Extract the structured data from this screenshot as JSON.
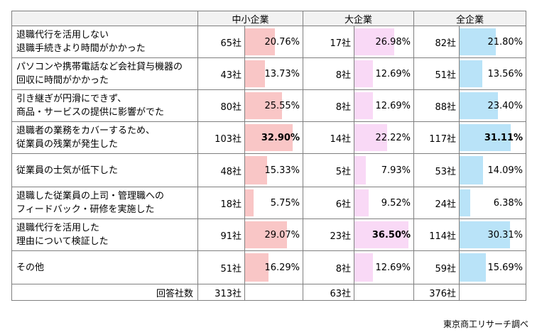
{
  "header": {
    "groups": [
      "中小企業",
      "大企業",
      "全企業"
    ]
  },
  "colors": {
    "sme_bar": "#f9c6c6",
    "large_bar": "#f9d9f6",
    "all_bar": "#b9e3f8"
  },
  "rows": [
    {
      "label1": "退職代行を活用しない",
      "label2": "退職手続きより時間がかかった",
      "sme": {
        "count": "65社",
        "pct": "20.76%",
        "value": 20.76
      },
      "large": {
        "count": "17社",
        "pct": "26.98%",
        "value": 26.98
      },
      "all": {
        "count": "82社",
        "pct": "21.80%",
        "value": 21.8
      }
    },
    {
      "label1": "パソコンや携帯電話など会社貸与機器の",
      "label2": "回収に時間がかかった",
      "sme": {
        "count": "43社",
        "pct": "13.73%",
        "value": 13.73
      },
      "large": {
        "count": "8社",
        "pct": "12.69%",
        "value": 12.69
      },
      "all": {
        "count": "51社",
        "pct": "13.56%",
        "value": 13.56
      }
    },
    {
      "label1": "引き継ぎが円滑にできず、",
      "label2": "商品・サービスの提供に影響がでた",
      "sme": {
        "count": "80社",
        "pct": "25.55%",
        "value": 25.55
      },
      "large": {
        "count": "8社",
        "pct": "12.69%",
        "value": 12.69
      },
      "all": {
        "count": "88社",
        "pct": "23.40%",
        "value": 23.4
      }
    },
    {
      "label1": "退職者の業務をカバーするため、",
      "label2": "従業員の残業が発生した",
      "sme": {
        "count": "103社",
        "pct": "32.90%",
        "value": 32.9,
        "bold": true
      },
      "large": {
        "count": "14社",
        "pct": "22.22%",
        "value": 22.22
      },
      "all": {
        "count": "117社",
        "pct": "31.11%",
        "value": 31.11,
        "bold": true
      }
    },
    {
      "label1": "従業員の士気が低下した",
      "label2": "",
      "sme": {
        "count": "48社",
        "pct": "15.33%",
        "value": 15.33
      },
      "large": {
        "count": "5社",
        "pct": "7.93%",
        "value": 7.93
      },
      "all": {
        "count": "53社",
        "pct": "14.09%",
        "value": 14.09
      }
    },
    {
      "label1": "退職した従業員の上司・管理職への",
      "label2": "フィードバック・研修を実施した",
      "sme": {
        "count": "18社",
        "pct": "5.75%",
        "value": 5.75
      },
      "large": {
        "count": "6社",
        "pct": "9.52%",
        "value": 9.52
      },
      "all": {
        "count": "24社",
        "pct": "6.38%",
        "value": 6.38
      }
    },
    {
      "label1": "退職代行を活用した",
      "label2": "理由について検証した",
      "sme": {
        "count": "91社",
        "pct": "29.07%",
        "value": 29.07
      },
      "large": {
        "count": "23社",
        "pct": "36.50%",
        "value": 36.5,
        "bold": true
      },
      "all": {
        "count": "114社",
        "pct": "30.31%",
        "value": 30.31
      }
    },
    {
      "label1": "その他",
      "label2": "",
      "sme": {
        "count": "51社",
        "pct": "16.29%",
        "value": 16.29
      },
      "large": {
        "count": "8社",
        "pct": "12.69%",
        "value": 12.69
      },
      "all": {
        "count": "59社",
        "pct": "15.69%",
        "value": 15.69
      }
    }
  ],
  "total": {
    "label": "回答社数",
    "sme": "313社",
    "large": "63社",
    "all": "376社"
  },
  "source": "東京商工リサーチ調べ"
}
